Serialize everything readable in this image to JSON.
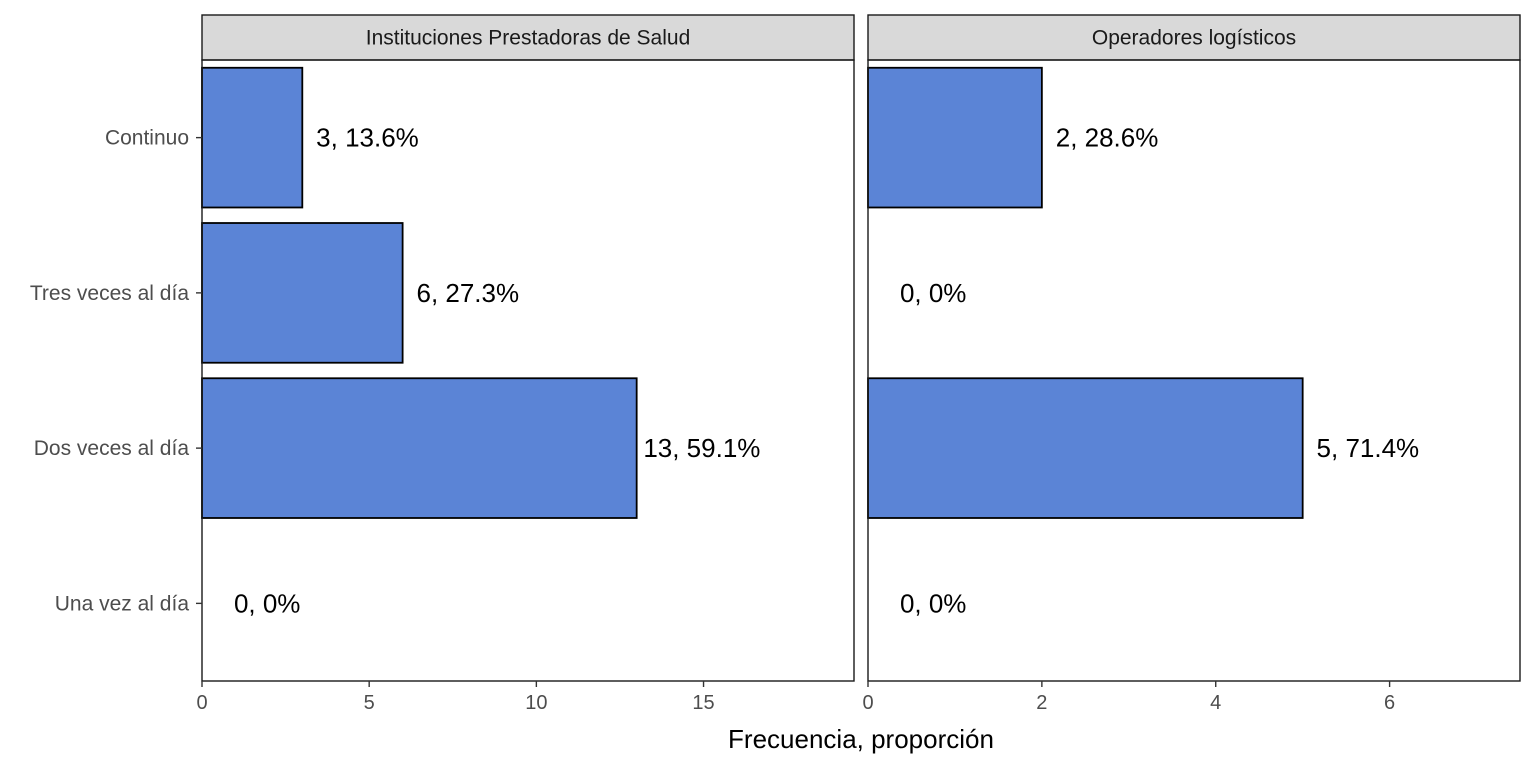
{
  "chart_data": {
    "type": "bar",
    "orientation": "horizontal",
    "xlabel": "Frecuencia, proporción",
    "ylabel": "",
    "categories": [
      "Continuo",
      "Tres veces al día",
      "Dos veces al día",
      "Una vez al día"
    ],
    "bar_color": "#5b84d6",
    "bar_border_color": "#000000",
    "strip_color": "#d9d9d9",
    "grid": false,
    "legend": "none",
    "panels": [
      {
        "title": "Instituciones Prestadoras de Salud",
        "values": [
          3,
          6,
          13,
          0
        ],
        "labels": [
          "3, 13.6%",
          "6, 27.3%",
          "13, 59.1%",
          "0, 0%"
        ],
        "xlim": [
          0,
          19.5
        ],
        "xticks": [
          0,
          5,
          10,
          15
        ]
      },
      {
        "title": "Operadores logísticos",
        "values": [
          2,
          0,
          5,
          0
        ],
        "labels": [
          "2, 28.6%",
          "0, 0%",
          "5, 71.4%",
          "0, 0%"
        ],
        "xlim": [
          0,
          7.5
        ],
        "xticks": [
          0,
          2,
          4,
          6
        ]
      }
    ]
  }
}
